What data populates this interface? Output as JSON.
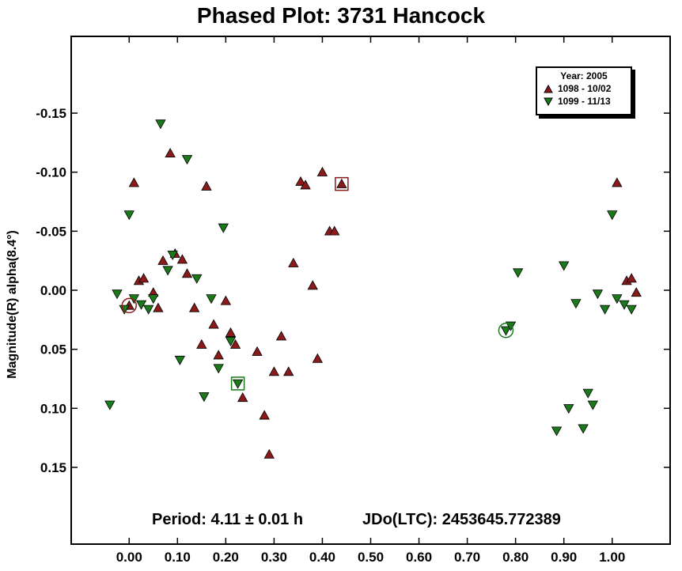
{
  "title": "Phased Plot: 3731 Hancock",
  "period_text": "Period: 4.11 ± 0.01 h",
  "jd_text": "JDo(LTC): 2453645.772389",
  "colors": {
    "series1": "#8b1a1a",
    "series2": "#1a7a1a",
    "axis": "#000000"
  },
  "chart_data": {
    "type": "scatter",
    "title": "Phased Plot: 3731 Hancock",
    "xlabel": "",
    "ylabel": "Magnitude(R) alpha(8.4°)",
    "xlim": [
      -0.12,
      1.12
    ],
    "ylim": [
      0.215,
      -0.215
    ],
    "y_inverted": true,
    "grid": false,
    "xticks": [
      "0.00",
      "0.10",
      "0.20",
      "0.30",
      "0.40",
      "0.50",
      "0.60",
      "0.70",
      "0.80",
      "0.90",
      "1.00"
    ],
    "yticks": [
      "-0.15",
      "-0.10",
      "-0.05",
      "0.00",
      "0.05",
      "0.10",
      "0.15"
    ],
    "legend": {
      "title": "Year: 2005",
      "placement": "top-right"
    },
    "series": [
      {
        "name": "1098 - 10/02",
        "marker": "triangle-up",
        "color": "#8b1a1a",
        "points": [
          [
            0.0,
            0.013
          ],
          [
            0.01,
            -0.091
          ],
          [
            0.02,
            -0.008
          ],
          [
            0.03,
            -0.01
          ],
          [
            0.05,
            0.002
          ],
          [
            0.06,
            0.015
          ],
          [
            0.07,
            -0.025
          ],
          [
            0.085,
            -0.116
          ],
          [
            0.095,
            -0.031
          ],
          [
            0.11,
            -0.026
          ],
          [
            0.12,
            -0.014
          ],
          [
            0.135,
            0.015
          ],
          [
            0.16,
            -0.088
          ],
          [
            0.15,
            0.046
          ],
          [
            0.175,
            0.029
          ],
          [
            0.185,
            0.055
          ],
          [
            0.2,
            0.009
          ],
          [
            0.21,
            0.036
          ],
          [
            0.22,
            0.046
          ],
          [
            0.235,
            0.091
          ],
          [
            0.265,
            0.052
          ],
          [
            0.28,
            0.106
          ],
          [
            0.29,
            0.139
          ],
          [
            0.3,
            0.069
          ],
          [
            0.315,
            0.039
          ],
          [
            0.33,
            0.069
          ],
          [
            0.34,
            -0.023
          ],
          [
            0.355,
            -0.092
          ],
          [
            0.365,
            -0.089
          ],
          [
            0.38,
            -0.004
          ],
          [
            0.39,
            0.058
          ],
          [
            0.4,
            -0.1
          ],
          [
            0.415,
            -0.05
          ],
          [
            0.425,
            -0.05
          ],
          [
            0.44,
            -0.09
          ],
          [
            1.01,
            -0.091
          ],
          [
            1.03,
            -0.008
          ],
          [
            1.04,
            -0.01
          ],
          [
            1.05,
            0.002
          ]
        ]
      },
      {
        "name": "1099 - 11/13",
        "marker": "triangle-down",
        "color": "#1a7a1a",
        "points": [
          [
            -0.04,
            0.097
          ],
          [
            -0.025,
            0.003
          ],
          [
            -0.01,
            0.016
          ],
          [
            0.0,
            -0.064
          ],
          [
            0.01,
            0.007
          ],
          [
            0.025,
            0.012
          ],
          [
            0.04,
            0.016
          ],
          [
            0.05,
            0.007
          ],
          [
            0.065,
            -0.141
          ],
          [
            0.08,
            -0.017
          ],
          [
            0.09,
            -0.03
          ],
          [
            0.105,
            0.059
          ],
          [
            0.12,
            -0.111
          ],
          [
            0.14,
            -0.01
          ],
          [
            0.155,
            0.09
          ],
          [
            0.17,
            0.007
          ],
          [
            0.185,
            0.066
          ],
          [
            0.195,
            -0.053
          ],
          [
            0.21,
            0.043
          ],
          [
            0.225,
            0.079
          ],
          [
            0.78,
            0.034
          ],
          [
            0.79,
            0.03
          ],
          [
            0.805,
            -0.015
          ],
          [
            0.885,
            0.119
          ],
          [
            0.9,
            -0.021
          ],
          [
            0.91,
            0.1
          ],
          [
            0.925,
            0.011
          ],
          [
            0.94,
            0.117
          ],
          [
            0.95,
            0.087
          ],
          [
            0.96,
            0.097
          ],
          [
            0.97,
            0.003
          ],
          [
            0.985,
            0.016
          ],
          [
            1.0,
            -0.064
          ],
          [
            1.01,
            0.007
          ],
          [
            1.025,
            0.012
          ],
          [
            1.04,
            0.016
          ]
        ]
      }
    ],
    "highlighted": [
      {
        "series": "1098 - 10/02",
        "x": 0.0,
        "y": 0.013,
        "mark": "circle"
      },
      {
        "series": "1098 - 10/02",
        "x": 0.44,
        "y": -0.09,
        "mark": "square"
      },
      {
        "series": "1099 - 11/13",
        "x": 0.78,
        "y": 0.034,
        "mark": "circle"
      },
      {
        "series": "1099 - 11/13",
        "x": 0.225,
        "y": 0.079,
        "mark": "square"
      }
    ]
  }
}
